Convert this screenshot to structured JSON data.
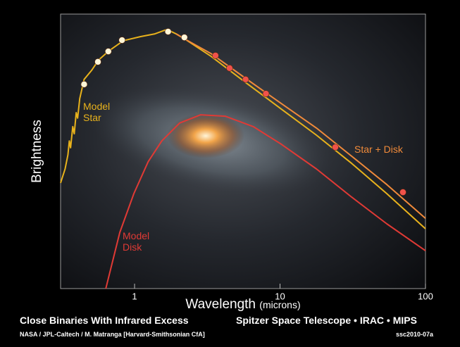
{
  "chart_data": {
    "type": "line",
    "x_label": "Wavelength",
    "x_unit": "(microns)",
    "y_label": "Brightness",
    "xscale": "log",
    "xlim": [
      0.31,
      100
    ],
    "xticks": [
      1,
      10,
      100
    ],
    "ylim": [
      0,
      100
    ],
    "series": [
      {
        "name": "Model Star",
        "color": "#e8b21c",
        "x": [
          0.31,
          0.333,
          0.348,
          0.356,
          0.363,
          0.376,
          0.385,
          0.397,
          0.406,
          0.42,
          0.45,
          0.507,
          0.567,
          0.67,
          0.837,
          1.1,
          1.38,
          1.67,
          1.93,
          2.2,
          3.36,
          5.86,
          10.2,
          17.8,
          31.1,
          54.2,
          100
        ],
        "values": [
          38.5,
          43.6,
          48.7,
          53.8,
          51.3,
          59.0,
          56.4,
          64.1,
          62.1,
          69.2,
          76.2,
          79.5,
          83.3,
          86.7,
          90.3,
          91.8,
          92.8,
          94.4,
          92.8,
          91.0,
          84.6,
          74.9,
          65.4,
          55.9,
          45.6,
          34.6,
          21.8
        ]
      },
      {
        "name": "Star + Disk",
        "color": "#f08a3a",
        "x": [
          1.93,
          2.2,
          3.36,
          5.86,
          10.2,
          17.8,
          31.1,
          54.2,
          100
        ],
        "values": [
          92.8,
          91.0,
          85.6,
          76.4,
          67.4,
          58.5,
          48.2,
          37.9,
          25.6
        ]
      },
      {
        "name": "Model Disk",
        "color": "#e03a35",
        "x": [
          0.634,
          0.792,
          0.989,
          1.24,
          1.54,
          2.04,
          2.85,
          4.2,
          6.55,
          10.2,
          17.8,
          31.1,
          54.2,
          100
        ],
        "values": [
          0,
          20.5,
          34.6,
          46.2,
          53.8,
          60.3,
          63.3,
          62.8,
          59.0,
          52.6,
          43.6,
          33.3,
          23.6,
          13.8
        ]
      }
    ],
    "points": [
      {
        "color": "#fff6d8",
        "x": [
          0.45,
          0.56,
          0.66,
          0.82,
          1.7,
          2.2
        ],
        "values": [
          74.4,
          82.6,
          86.4,
          90.5,
          93.6,
          91.5
        ]
      },
      {
        "color": "#f0524a",
        "x": [
          3.6,
          4.5,
          5.8,
          8.0,
          24,
          70
        ],
        "values": [
          84.9,
          80.3,
          76.2,
          71.0,
          51.5,
          35.1
        ]
      }
    ]
  },
  "footer": {
    "title": "Close Binaries With Infrared Excess",
    "credit": "NASA / JPL-Caltech / M. Matranga [Harvard-Smithsonian CfA]",
    "instruments": "Spitzer Space Telescope • IRAC • MIPS",
    "id": "ssc2010-07a"
  }
}
